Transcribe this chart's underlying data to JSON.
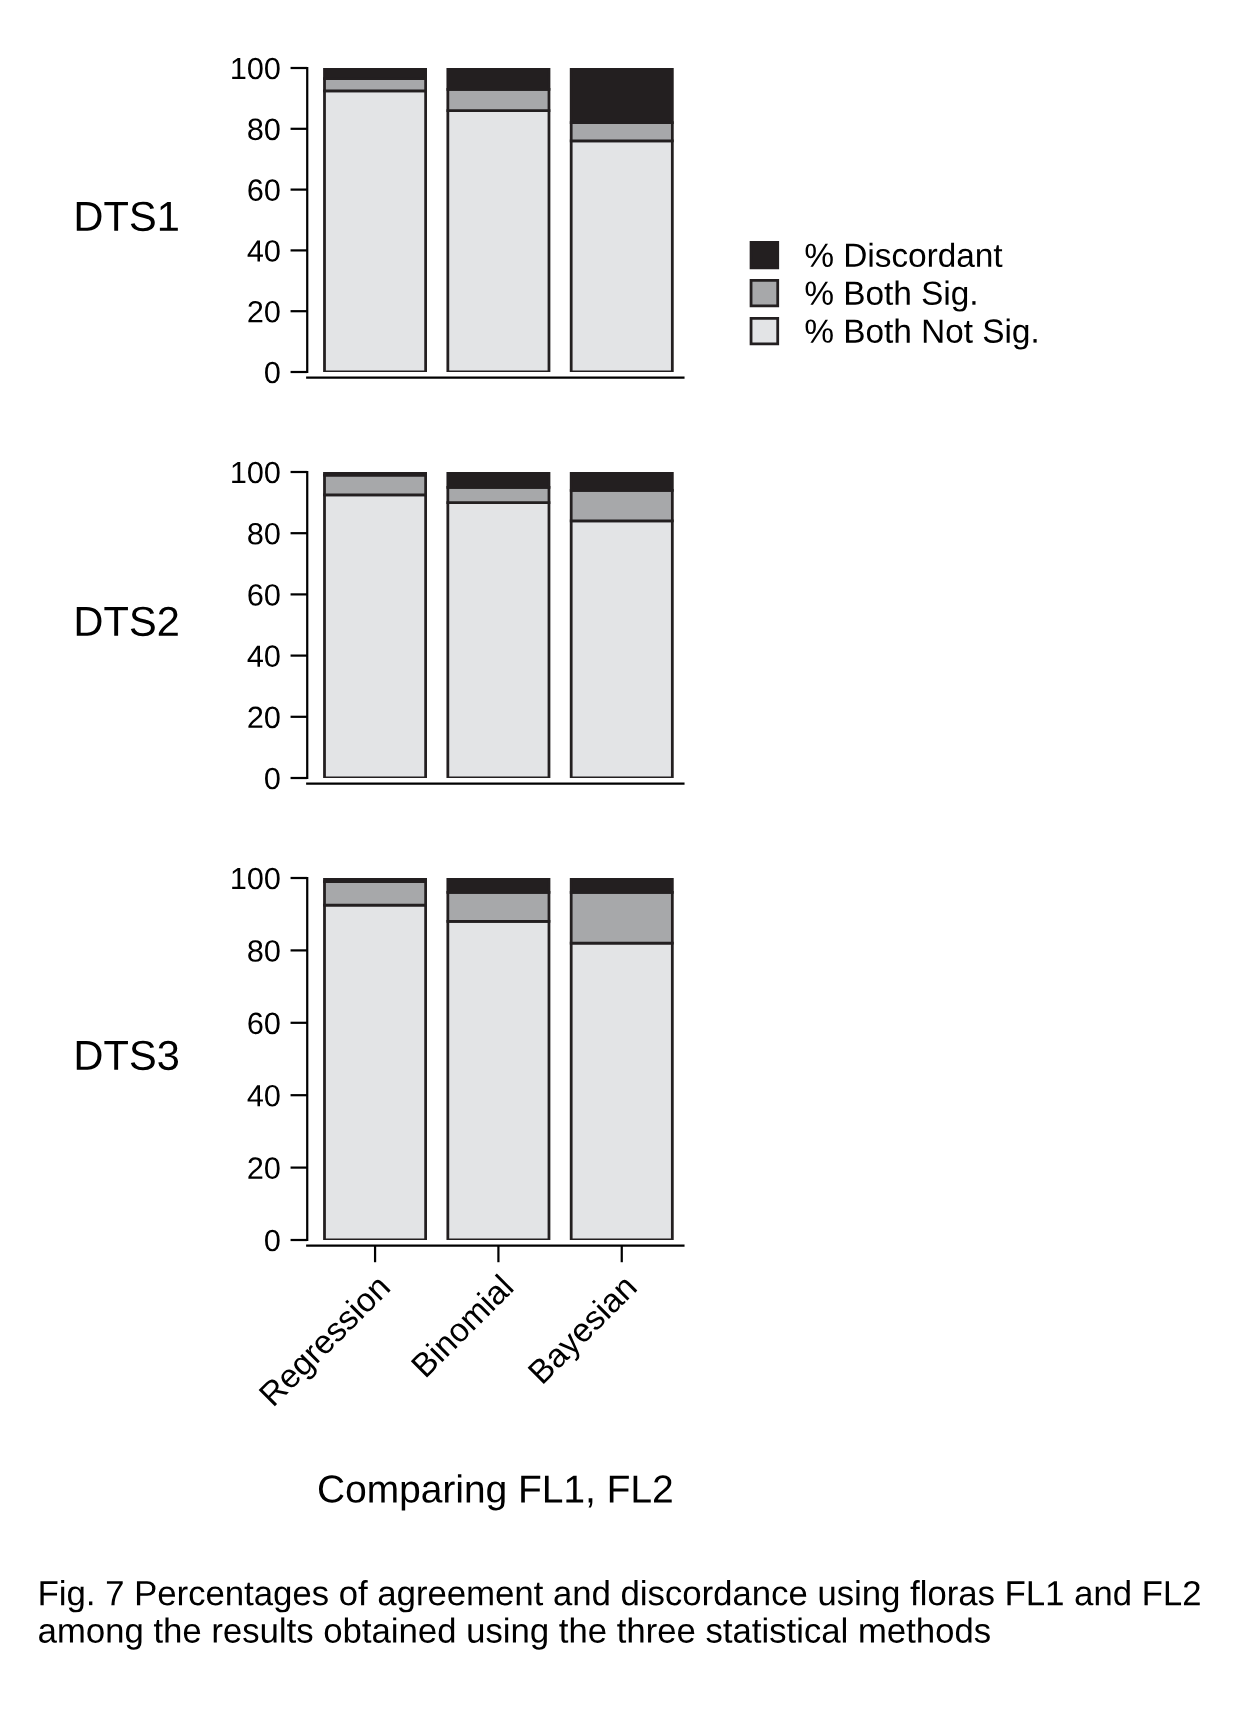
{
  "chart_data": [
    {
      "type": "bar",
      "stacked": true,
      "ylabel": "DTS1",
      "categories": [
        null,
        null,
        null
      ],
      "ylim": [
        0,
        100
      ],
      "yticks": [
        0,
        20,
        40,
        60,
        80,
        100
      ],
      "tick_labels": "y",
      "legend": "right",
      "series": [
        {
          "name": "% Both Not Sig.",
          "color": "#e3e4e6",
          "values": [
            92.5,
            86,
            76
          ]
        },
        {
          "name": "% Both Sig.",
          "color": "#a7a8aa",
          "values": [
            4,
            7,
            6
          ]
        },
        {
          "name": "% Discordant",
          "color": "#231f20",
          "values": [
            3.5,
            7,
            18
          ]
        }
      ]
    },
    {
      "type": "bar",
      "stacked": true,
      "ylabel": "DTS2",
      "categories": [
        null,
        null,
        null
      ],
      "ylim": [
        0,
        100
      ],
      "yticks": [
        0,
        20,
        40,
        60,
        80,
        100
      ],
      "tick_labels": "y",
      "series": [
        {
          "color": "#e3e4e6",
          "values": [
            92.5,
            90,
            84
          ]
        },
        {
          "color": "#a7a8aa",
          "values": [
            6.5,
            5,
            10
          ]
        },
        {
          "color": "#231f20",
          "values": [
            1,
            5,
            6
          ]
        }
      ]
    },
    {
      "type": "bar",
      "stacked": true,
      "ylabel": "DTS3",
      "xlabel": "Comparing FL1, FL2",
      "categories": [
        "Regression",
        "Binomial",
        "Bayesian"
      ],
      "ylim": [
        0,
        100
      ],
      "yticks": [
        0,
        20,
        40,
        60,
        80,
        100
      ],
      "annotations": [
        "Fig. 7 Percentages of agreement and discordance using floras FL1 and FL2 among the results obtained using the three statistical methods"
      ],
      "series": [
        {
          "color": "#e3e4e6",
          "values": [
            92.5,
            88,
            82
          ]
        },
        {
          "color": "#a7a8aa",
          "values": [
            6.5,
            8,
            14
          ]
        },
        {
          "color": "#231f20",
          "values": [
            1,
            4,
            4
          ]
        }
      ]
    }
  ]
}
